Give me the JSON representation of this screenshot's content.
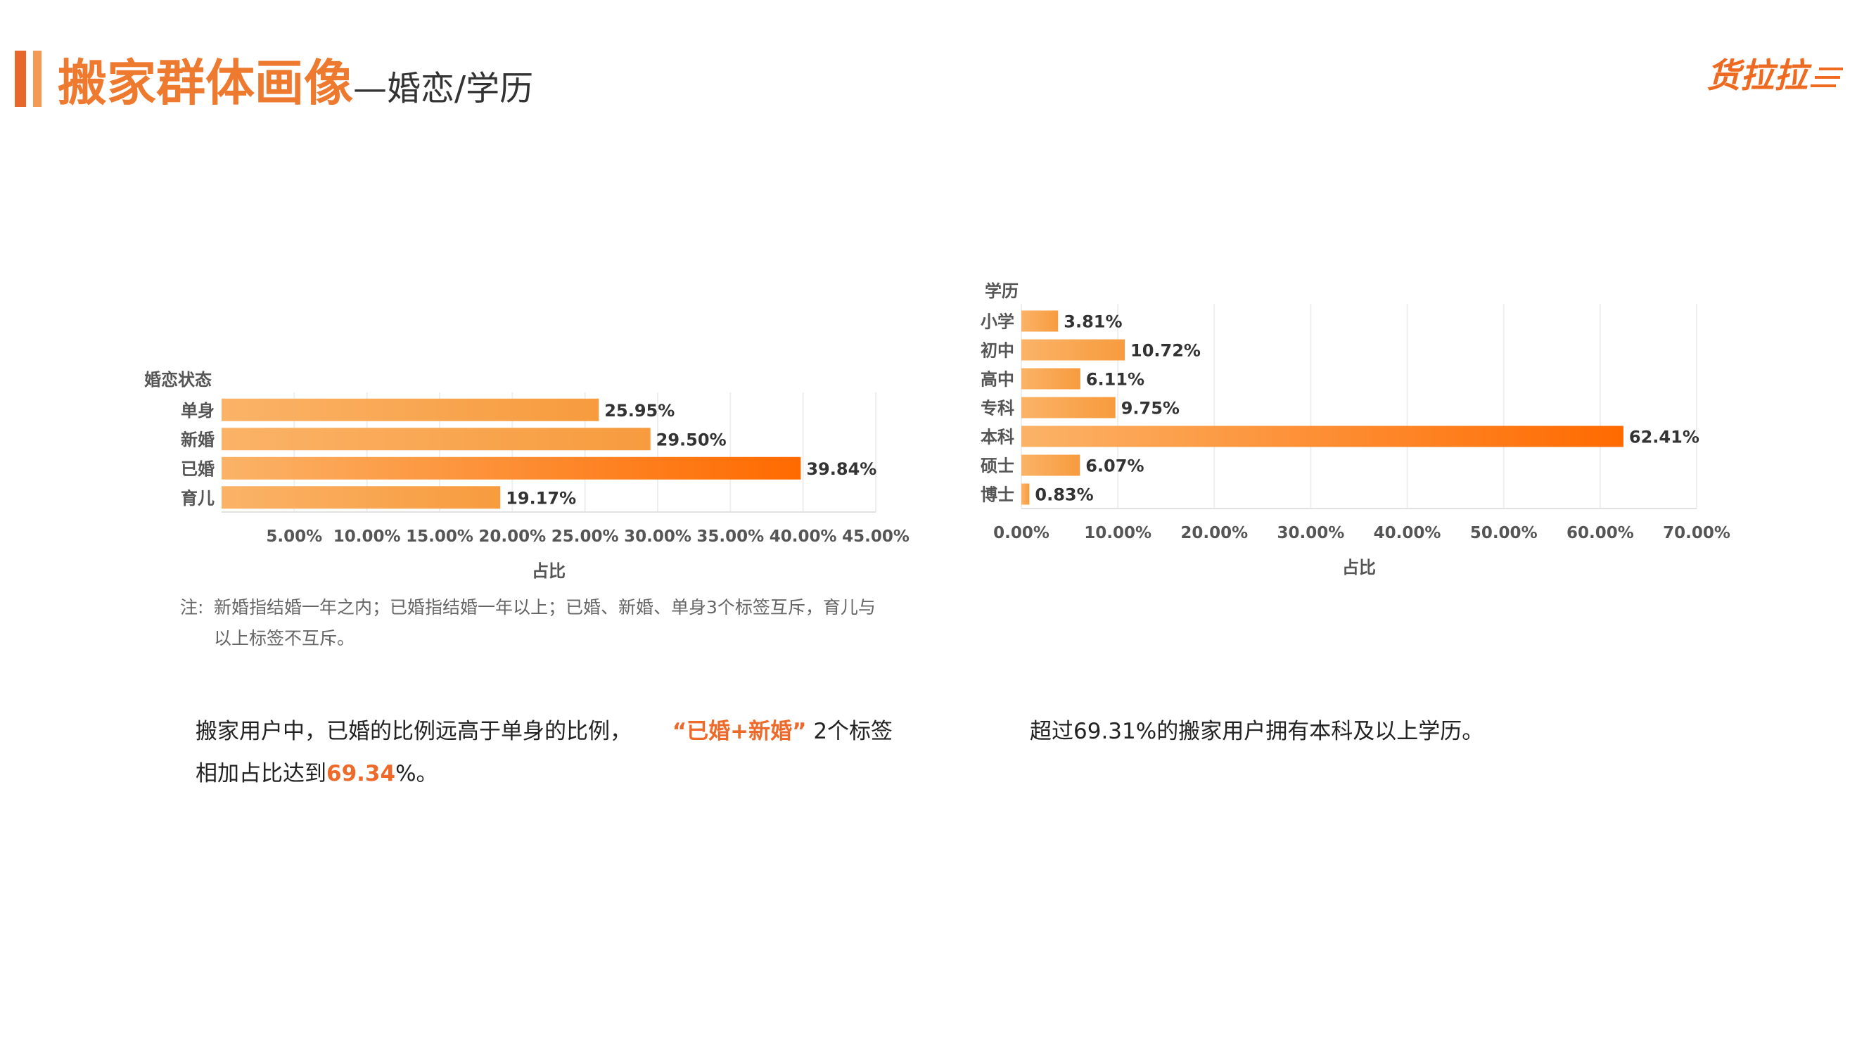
{
  "header": {
    "title_main": "搬家群体画像",
    "title_sub": "—婚恋/学历",
    "logo_text": "货拉拉"
  },
  "colors": {
    "accent": "#ee7a30",
    "bar_start": "#fbb367",
    "bar_end_low": "#f79b3e",
    "bar_end_high": "#ff6a00",
    "gridline": "#eeeeee"
  },
  "chart_data": [
    {
      "type": "bar",
      "orientation": "horizontal",
      "category_axis_title": "婚恋状态",
      "xlabel": "占比",
      "categories": [
        "单身",
        "新婚",
        "已婚",
        "育儿"
      ],
      "values": [
        25.95,
        29.5,
        39.84,
        19.17
      ],
      "value_labels": [
        "25.95%",
        "29.50%",
        "39.84%",
        "19.17%"
      ],
      "xlim": [
        0,
        45
      ],
      "ticks": [
        5,
        10,
        15,
        20,
        25,
        30,
        35,
        40,
        45
      ],
      "tick_labels": [
        "5.00%",
        "10.00%",
        "15.00%",
        "20.00%",
        "25.00%",
        "30.00%",
        "35.00%",
        "40.00%",
        "45.00%"
      ],
      "grid": true
    },
    {
      "type": "bar",
      "orientation": "horizontal",
      "category_axis_title": "学历",
      "xlabel": "占比",
      "categories": [
        "小学",
        "初中",
        "高中",
        "专科",
        "本科",
        "硕士",
        "博士"
      ],
      "values": [
        3.81,
        10.72,
        6.11,
        9.75,
        62.41,
        6.07,
        0.83
      ],
      "value_labels": [
        "3.81%",
        "10.72%",
        "6.11%",
        "9.75%",
        "62.41%",
        "6.07%",
        "0.83%"
      ],
      "xlim": [
        0,
        70
      ],
      "ticks": [
        0,
        10,
        20,
        30,
        40,
        50,
        60,
        70
      ],
      "tick_labels": [
        "0.00%",
        "10.00%",
        "20.00%",
        "30.00%",
        "40.00%",
        "50.00%",
        "60.00%",
        "70.00%"
      ],
      "grid": true
    }
  ],
  "note": {
    "prefix": "注:",
    "line1": "新婚指结婚一年之内；已婚指结婚一年以上；已婚、新婚、单身3个标签互斥，育儿与",
    "line2": "以上标签不互斥。"
  },
  "summary_left": {
    "part1": "搬家用户中，已婚的比例远高于单身的比例，",
    "quote_open": "“",
    "highlight1": "已婚+新婚",
    "quote_close": "”",
    "part2": "2个标签",
    "part3": "相加占比达到",
    "highlight2": "69.34",
    "part4": "%。"
  },
  "summary_right": {
    "text": "超过69.31%的搬家用户拥有本科及以上学历。"
  }
}
